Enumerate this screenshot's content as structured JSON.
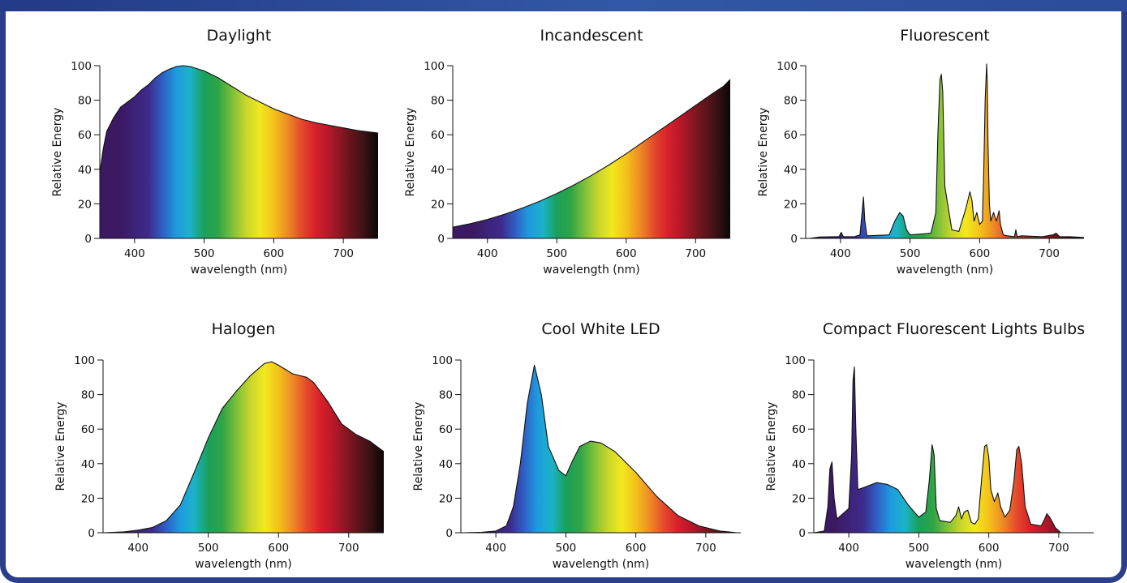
{
  "colors": {
    "frame": "#2a3f8c",
    "spectrum": {
      "380": "#3b1a63",
      "420": "#3e2a8c",
      "440": "#2f5fc4",
      "460": "#1e9bde",
      "480": "#1bb3c9",
      "500": "#1aa05a",
      "520": "#2ea446",
      "540": "#7cbf3a",
      "560": "#c8d62c",
      "580": "#f2e81e",
      "600": "#f4c21b",
      "620": "#ee8a26",
      "640": "#e44a2c",
      "660": "#d81f2a",
      "680": "#b3182a",
      "700": "#7e1620",
      "730": "#3a1214",
      "750": "#0b0606"
    }
  },
  "chart_data": [
    {
      "type": "area",
      "title": "Daylight",
      "xlabel": "wavelength (nm)",
      "ylabel": "Relative Energy",
      "xlim": [
        350,
        750
      ],
      "ylim": [
        0,
        100
      ],
      "xticks": [
        400,
        500,
        600,
        700
      ],
      "yticks": [
        0,
        20,
        40,
        60,
        80,
        100
      ],
      "grid": false,
      "x": [
        350,
        355,
        360,
        370,
        380,
        390,
        400,
        410,
        420,
        430,
        440,
        450,
        460,
        470,
        480,
        500,
        520,
        540,
        560,
        580,
        600,
        620,
        640,
        660,
        680,
        700,
        720,
        740,
        750
      ],
      "y": [
        38,
        52,
        62,
        70,
        76,
        79,
        82,
        86,
        89,
        93,
        96,
        98,
        99.5,
        100,
        99.5,
        97,
        93,
        88,
        83,
        79,
        75,
        72,
        69,
        67,
        65.5,
        64,
        62.5,
        61.5,
        61
      ]
    },
    {
      "type": "area",
      "title": "Incandescent",
      "xlabel": "wavelength (nm)",
      "ylabel": "Relative Energy",
      "xlim": [
        350,
        750
      ],
      "ylim": [
        0,
        100
      ],
      "xticks": [
        400,
        500,
        600,
        700
      ],
      "yticks": [
        0,
        20,
        40,
        60,
        80,
        100
      ],
      "grid": false,
      "x": [
        350,
        375,
        400,
        425,
        450,
        475,
        500,
        525,
        550,
        575,
        600,
        625,
        650,
        675,
        700,
        725,
        740,
        750
      ],
      "y": [
        6.5,
        8.5,
        11,
        14,
        17.5,
        21.5,
        26,
        31,
        36.5,
        42.5,
        49,
        56,
        63,
        70,
        77,
        84,
        88,
        92
      ]
    },
    {
      "type": "area",
      "title": "Fluorescent",
      "xlabel": "wavelength (nm)",
      "ylabel": "Relative Energy",
      "xlim": [
        350,
        750
      ],
      "ylim": [
        0,
        100
      ],
      "xticks": [
        400,
        500,
        600,
        700
      ],
      "yticks": [
        0,
        20,
        40,
        60,
        80,
        100
      ],
      "grid": false,
      "x": [
        355,
        370,
        390,
        398,
        401,
        404,
        420,
        428,
        431,
        433,
        435,
        438,
        470,
        478,
        485,
        490,
        495,
        500,
        530,
        537,
        540,
        543,
        545,
        547,
        550,
        560,
        570,
        580,
        586,
        589,
        592,
        596,
        600,
        604,
        606,
        608,
        610,
        611,
        612,
        614,
        616,
        620,
        624,
        628,
        630,
        634,
        640,
        650,
        652,
        654,
        660,
        690,
        705,
        710,
        715,
        730,
        750
      ],
      "y": [
        0,
        0.8,
        1,
        1,
        3.5,
        1,
        1,
        2,
        15,
        24,
        10,
        1.5,
        2,
        10,
        15,
        13,
        5,
        2,
        3,
        15,
        60,
        92,
        95,
        85,
        30,
        5,
        4,
        17,
        27,
        22,
        10,
        15,
        8,
        10,
        40,
        80,
        101,
        90,
        55,
        20,
        10,
        15,
        10,
        16,
        8,
        2,
        1.5,
        1,
        5,
        1,
        1.5,
        1,
        2,
        3,
        1,
        1,
        0.5
      ]
    },
    {
      "type": "area",
      "title": "Halogen",
      "xlabel": "wavelength (nm)",
      "ylabel": "Relative Energy",
      "xlim": [
        350,
        750
      ],
      "ylim": [
        0,
        100
      ],
      "xticks": [
        400,
        500,
        600,
        700
      ],
      "yticks": [
        0,
        20,
        40,
        60,
        80,
        100
      ],
      "grid": false,
      "x": [
        350,
        380,
        400,
        420,
        440,
        460,
        480,
        500,
        520,
        540,
        560,
        580,
        590,
        600,
        620,
        640,
        650,
        670,
        690,
        710,
        730,
        750
      ],
      "y": [
        0,
        0.5,
        1.5,
        3,
        7,
        16,
        35,
        55,
        72,
        82,
        91,
        98,
        99,
        97,
        92,
        90,
        87,
        76,
        63,
        57,
        53,
        47
      ]
    },
    {
      "type": "area",
      "title": "Cool White LED",
      "xlabel": "wavelength (nm)",
      "ylabel": "Relative Energy",
      "xlim": [
        350,
        750
      ],
      "ylim": [
        0,
        100
      ],
      "xticks": [
        400,
        500,
        600,
        700
      ],
      "yticks": [
        0,
        20,
        40,
        60,
        80,
        100
      ],
      "grid": false,
      "x": [
        355,
        380,
        400,
        415,
        425,
        435,
        445,
        455,
        465,
        475,
        490,
        500,
        510,
        520,
        535,
        550,
        570,
        600,
        630,
        660,
        690,
        720,
        745
      ],
      "y": [
        0,
        0.3,
        1,
        4,
        15,
        40,
        75,
        97,
        80,
        50,
        36,
        33,
        42,
        50,
        53,
        52,
        47,
        35,
        21,
        10,
        4,
        1,
        0
      ]
    },
    {
      "type": "area",
      "title": "Compact Fluorescent Lights Bulbs",
      "xlabel": "wavelength (nm)",
      "ylabel": "Relative Energy",
      "xlim": [
        350,
        750
      ],
      "ylim": [
        0,
        100
      ],
      "xticks": [
        400,
        500,
        600,
        700
      ],
      "yticks": [
        0,
        20,
        40,
        60,
        80,
        100
      ],
      "grid": false,
      "x": [
        350,
        365,
        370,
        373,
        376,
        379,
        383,
        400,
        404,
        406,
        408,
        410,
        413,
        420,
        440,
        455,
        470,
        485,
        500,
        510,
        515,
        519,
        522,
        525,
        530,
        545,
        553,
        557,
        561,
        565,
        570,
        575,
        580,
        585,
        590,
        594,
        597,
        600,
        603,
        608,
        613,
        617,
        623,
        630,
        636,
        640,
        643,
        647,
        652,
        660,
        675,
        680,
        683,
        687,
        695,
        703
      ],
      "y": [
        0,
        1,
        15,
        37,
        41,
        20,
        8,
        14,
        45,
        88,
        96,
        60,
        25,
        26,
        29,
        28,
        25,
        16,
        9,
        12,
        30,
        51,
        45,
        14,
        7,
        6,
        10,
        15,
        8,
        12,
        13,
        6,
        5,
        8,
        32,
        50,
        51,
        44,
        25,
        18,
        23,
        15,
        9,
        13,
        30,
        48,
        50,
        40,
        15,
        5,
        4,
        8,
        11,
        9,
        3,
        0
      ]
    }
  ]
}
